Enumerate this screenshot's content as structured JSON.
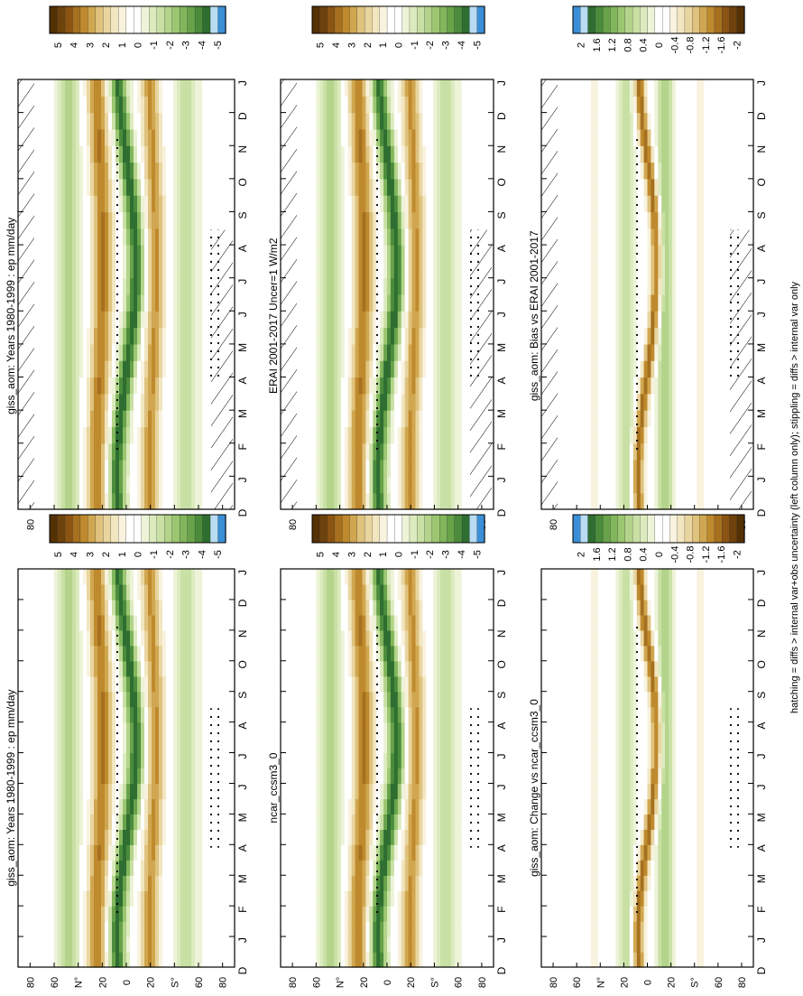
{
  "figure": {
    "footnote": "hatching = diffs > internal var+obs uncertainty (left column only); stippling = diffs > internal var only"
  },
  "axes": {
    "month_ticks": [
      "D",
      "J",
      "F",
      "M",
      "A",
      "M",
      "J",
      "J",
      "A",
      "S",
      "O",
      "N",
      "D",
      "J"
    ],
    "lat_ticks": [
      "80",
      "60",
      "N°",
      "20",
      "0",
      "20",
      "S°",
      "60",
      "80"
    ]
  },
  "colorbars": {
    "precip": {
      "labels": [
        "5",
        "4",
        "3",
        "2",
        "1",
        "0",
        "-1",
        "-2",
        "-3",
        "-4",
        "-5"
      ],
      "colors": [
        "#543005",
        "#6e420c",
        "#8c5413",
        "#a6701f",
        "#bf8a2d",
        "#d0a750",
        "#dfc27d",
        "#e9d59f",
        "#f2e6c0",
        "#f8f2de",
        "#ffffff",
        "#ffffff",
        "#ecf3d7",
        "#dcebbe",
        "#c9e0a5",
        "#b3d48a",
        "#9cc672",
        "#82b65c",
        "#68a24a",
        "#4b8c3c",
        "#2f6e31",
        "#b9dcf2",
        "#3a8fd6"
      ]
    },
    "diff": {
      "labels": [
        "2",
        "1.6",
        "1.2",
        "0.8",
        "0.4",
        "0",
        "-0.4",
        "-0.8",
        "-1.2",
        "-1.6",
        "-2"
      ],
      "colors": [
        "#3a8fd6",
        "#b9dcf2",
        "#2f6e31",
        "#4b8c3c",
        "#68a24a",
        "#82b65c",
        "#9cc672",
        "#b3d48a",
        "#c9e0a5",
        "#dcebbe",
        "#ecf3d7",
        "#ffffff",
        "#ffffff",
        "#f8f2de",
        "#f2e6c0",
        "#e9d59f",
        "#dfc27d",
        "#d0a750",
        "#bf8a2d",
        "#a6701f",
        "#8c5413",
        "#6e420c",
        "#543005"
      ]
    }
  },
  "chart_data": [
    {
      "type": "heatmap",
      "title": "giss_aom: Years 1980-1999 : ep mm/day",
      "x": "month",
      "y": "latitude",
      "ylim": [
        -90,
        90
      ],
      "colorbar": "precip",
      "hatching": true,
      "stippling": true
    },
    {
      "type": "heatmap",
      "title": "giss_aom: Years 1980-1999 : ep mm/day",
      "x": "month",
      "y": "latitude",
      "ylim": [
        -90,
        90
      ],
      "colorbar": "precip",
      "stippling": true
    },
    {
      "type": "heatmap",
      "title": "ERAI 2001-2017 Uncer=1 W/m2",
      "x": "month",
      "y": "latitude",
      "ylim": [
        -90,
        90
      ],
      "colorbar": "precip",
      "hatching": true,
      "stippling": true
    },
    {
      "type": "heatmap",
      "title": "ncar_ccsm3_0",
      "x": "month",
      "y": "latitude",
      "ylim": [
        -90,
        90
      ],
      "colorbar": "precip",
      "stippling": true
    },
    {
      "type": "heatmap",
      "title": "giss_aom: Bias vs ERAI 2001-2017",
      "x": "month",
      "y": "latitude",
      "ylim": [
        -90,
        90
      ],
      "colorbar": "diff",
      "hatching": true,
      "stippling": true
    },
    {
      "type": "heatmap",
      "title": "giss_aom: Change vs ncar_ccsm3_0",
      "x": "month",
      "y": "latitude",
      "ylim": [
        -90,
        90
      ],
      "colorbar": "diff",
      "stippling": true
    }
  ]
}
